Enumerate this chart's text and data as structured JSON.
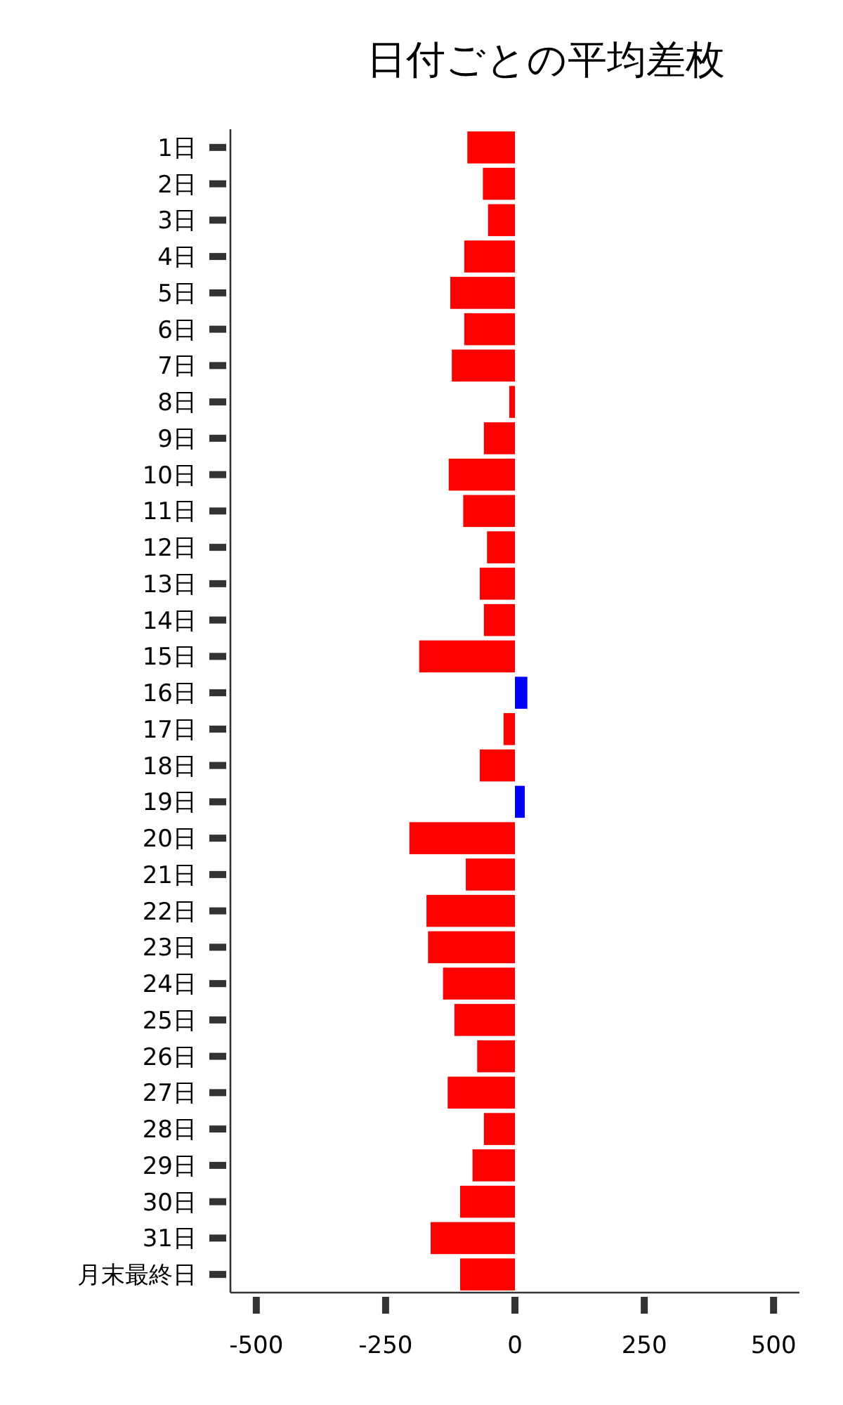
{
  "chart_data": {
    "type": "bar",
    "orientation": "horizontal",
    "title": "日付ごとの平均差枚",
    "categories": [
      "1日",
      "2日",
      "3日",
      "4日",
      "5日",
      "6日",
      "7日",
      "8日",
      "9日",
      "10日",
      "11日",
      "12日",
      "13日",
      "14日",
      "15日",
      "16日",
      "17日",
      "18日",
      "19日",
      "20日",
      "21日",
      "22日",
      "23日",
      "24日",
      "25日",
      "26日",
      "27日",
      "28日",
      "29日",
      "30日",
      "31日",
      "月末最終日"
    ],
    "values": [
      -92,
      -62,
      -52,
      -98,
      -125,
      -98,
      -122,
      -11,
      -60,
      -128,
      -100,
      -54,
      -68,
      -60,
      -185,
      24,
      -22,
      -68,
      19,
      -204,
      -95,
      -171,
      -168,
      -139,
      -117,
      -73,
      -130,
      -60,
      -82,
      -106,
      -163,
      -106
    ],
    "colors": [
      "#ff0000",
      "#ff0000",
      "#ff0000",
      "#ff0000",
      "#ff0000",
      "#ff0000",
      "#ff0000",
      "#ff0000",
      "#ff0000",
      "#ff0000",
      "#ff0000",
      "#ff0000",
      "#ff0000",
      "#ff0000",
      "#ff0000",
      "#0000ff",
      "#ff0000",
      "#ff0000",
      "#0000ff",
      "#ff0000",
      "#ff0000",
      "#ff0000",
      "#ff0000",
      "#ff0000",
      "#ff0000",
      "#ff0000",
      "#ff0000",
      "#ff0000",
      "#ff0000",
      "#ff0000",
      "#ff0000",
      "#ff0000"
    ],
    "xlim": [
      -550,
      550
    ],
    "xticks": [
      -500,
      -250,
      0,
      250,
      500
    ]
  }
}
